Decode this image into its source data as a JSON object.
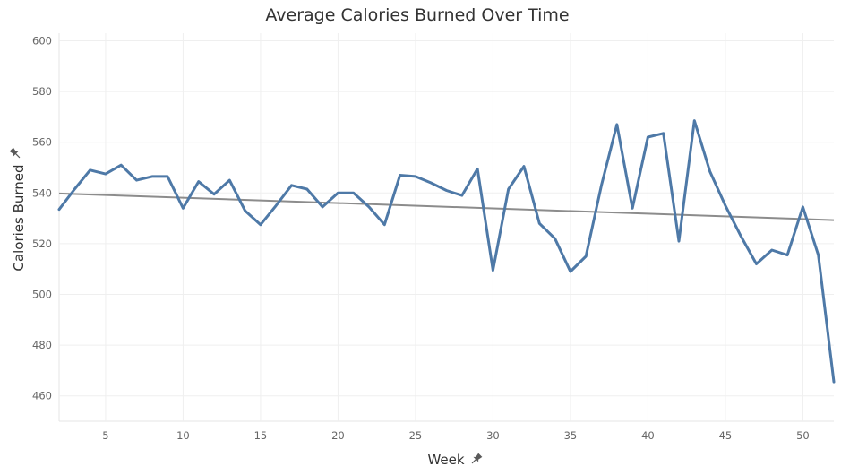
{
  "chart_data": {
    "type": "line",
    "title": "Average Calories Burned Over Time",
    "xlabel": "Week",
    "ylabel": "Calories Burned",
    "xlim": [
      2,
      52
    ],
    "ylim": [
      450,
      603
    ],
    "x_ticks": [
      5,
      10,
      15,
      20,
      25,
      30,
      35,
      40,
      45,
      50
    ],
    "y_ticks": [
      460,
      480,
      500,
      520,
      540,
      560,
      580,
      600
    ],
    "grid": true,
    "x": [
      2,
      3,
      4,
      5,
      6,
      7,
      8,
      9,
      10,
      11,
      12,
      13,
      14,
      15,
      16,
      17,
      18,
      19,
      20,
      21,
      22,
      23,
      24,
      25,
      26,
      27,
      28,
      29,
      30,
      31,
      32,
      33,
      34,
      35,
      36,
      37,
      38,
      39,
      40,
      41,
      42,
      43,
      44,
      45,
      46,
      47,
      48,
      49,
      50,
      51,
      52
    ],
    "series": [
      {
        "color": "#4e79a7",
        "values": [
          533.5,
          541.5,
          549.0,
          547.5,
          551.0,
          545.0,
          546.5,
          546.5,
          534.0,
          544.5,
          539.5,
          545.0,
          533.0,
          527.5,
          535.0,
          543.0,
          541.5,
          534.5,
          540.0,
          540.0,
          534.5,
          527.5,
          547.0,
          546.5,
          544.0,
          541.0,
          539.0,
          549.5,
          509.5,
          541.5,
          550.5,
          528.0,
          522.0,
          509.0,
          515.0,
          543.0,
          567.0,
          534.0,
          562.0,
          563.5,
          521.0,
          568.5,
          548.5,
          535.0,
          523.0,
          512.0,
          517.5,
          515.5,
          534.5,
          515.5,
          465.5
        ]
      }
    ],
    "trend_line": {
      "color": "#8c8c8c",
      "x": [
        2,
        52
      ],
      "y": [
        539.8,
        529.3
      ]
    }
  }
}
